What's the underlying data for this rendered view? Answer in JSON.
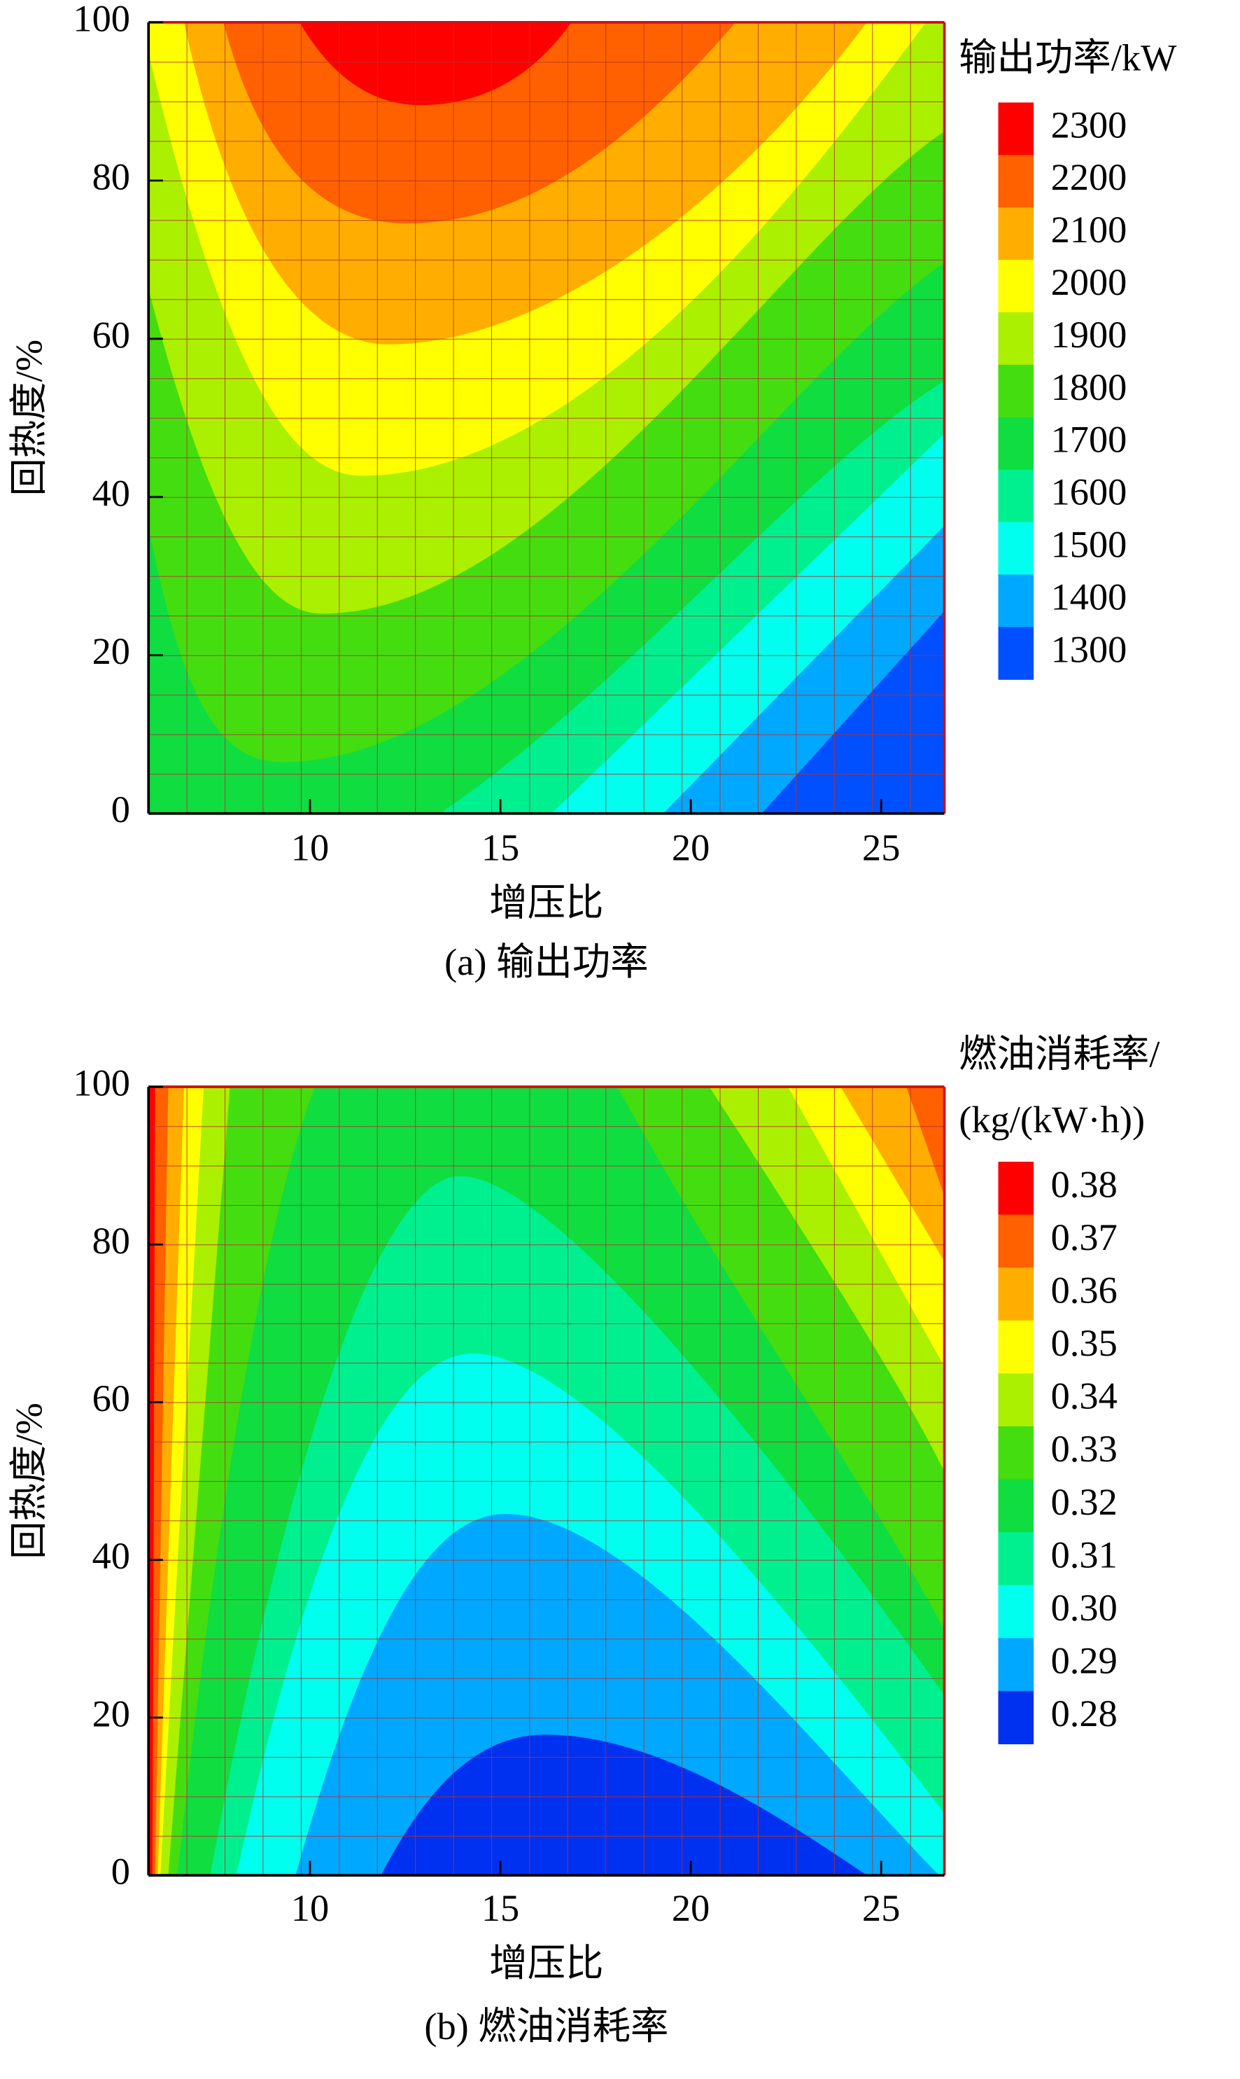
{
  "chart_data": [
    {
      "type": "contour",
      "caption": "(a) 输出功率",
      "xlabel": "增压比",
      "ylabel": "回热度/%",
      "xlim": [
        5.76,
        26.66
      ],
      "ylim": [
        0,
        100
      ],
      "xticks": [
        10,
        15,
        20,
        25
      ],
      "yticks": [
        0,
        20,
        40,
        60,
        80,
        100
      ],
      "colorbar_title": "输出功率/kW",
      "levels": [
        2300,
        2200,
        2100,
        2000,
        1900,
        1800,
        1700,
        1600,
        1500,
        1400,
        1300
      ],
      "colors": [
        "#ff0000",
        "#ff6000",
        "#ffae00",
        "#ffff00",
        "#aaf000",
        "#44dd10",
        "#10dd40",
        "#00f090",
        "#00ffee",
        "#00a8ff",
        "#0050ff"
      ]
    },
    {
      "type": "contour",
      "caption": "(b) 燃油消耗率",
      "xlabel": "增压比",
      "ylabel": "回热度/%",
      "xlim": [
        5.76,
        26.66
      ],
      "ylim": [
        0,
        100
      ],
      "xticks": [
        10,
        15,
        20,
        25
      ],
      "yticks": [
        0,
        20,
        40,
        60,
        80,
        100
      ],
      "colorbar_title": [
        "燃油消耗率/",
        "(kg/(kW·h))"
      ],
      "levels": [
        0.38,
        0.37,
        0.36,
        0.35,
        0.34,
        0.33,
        0.32,
        0.31,
        {
          "value": 0.3,
          "label": "0.30"
        },
        0.29,
        0.28
      ],
      "colors": [
        "#ff0000",
        "#ff6000",
        "#ffae00",
        "#ffff00",
        "#aaf000",
        "#44dd10",
        "#10dd40",
        "#00f090",
        "#00ffee",
        "#00a8ff",
        "#0030f0"
      ]
    }
  ]
}
